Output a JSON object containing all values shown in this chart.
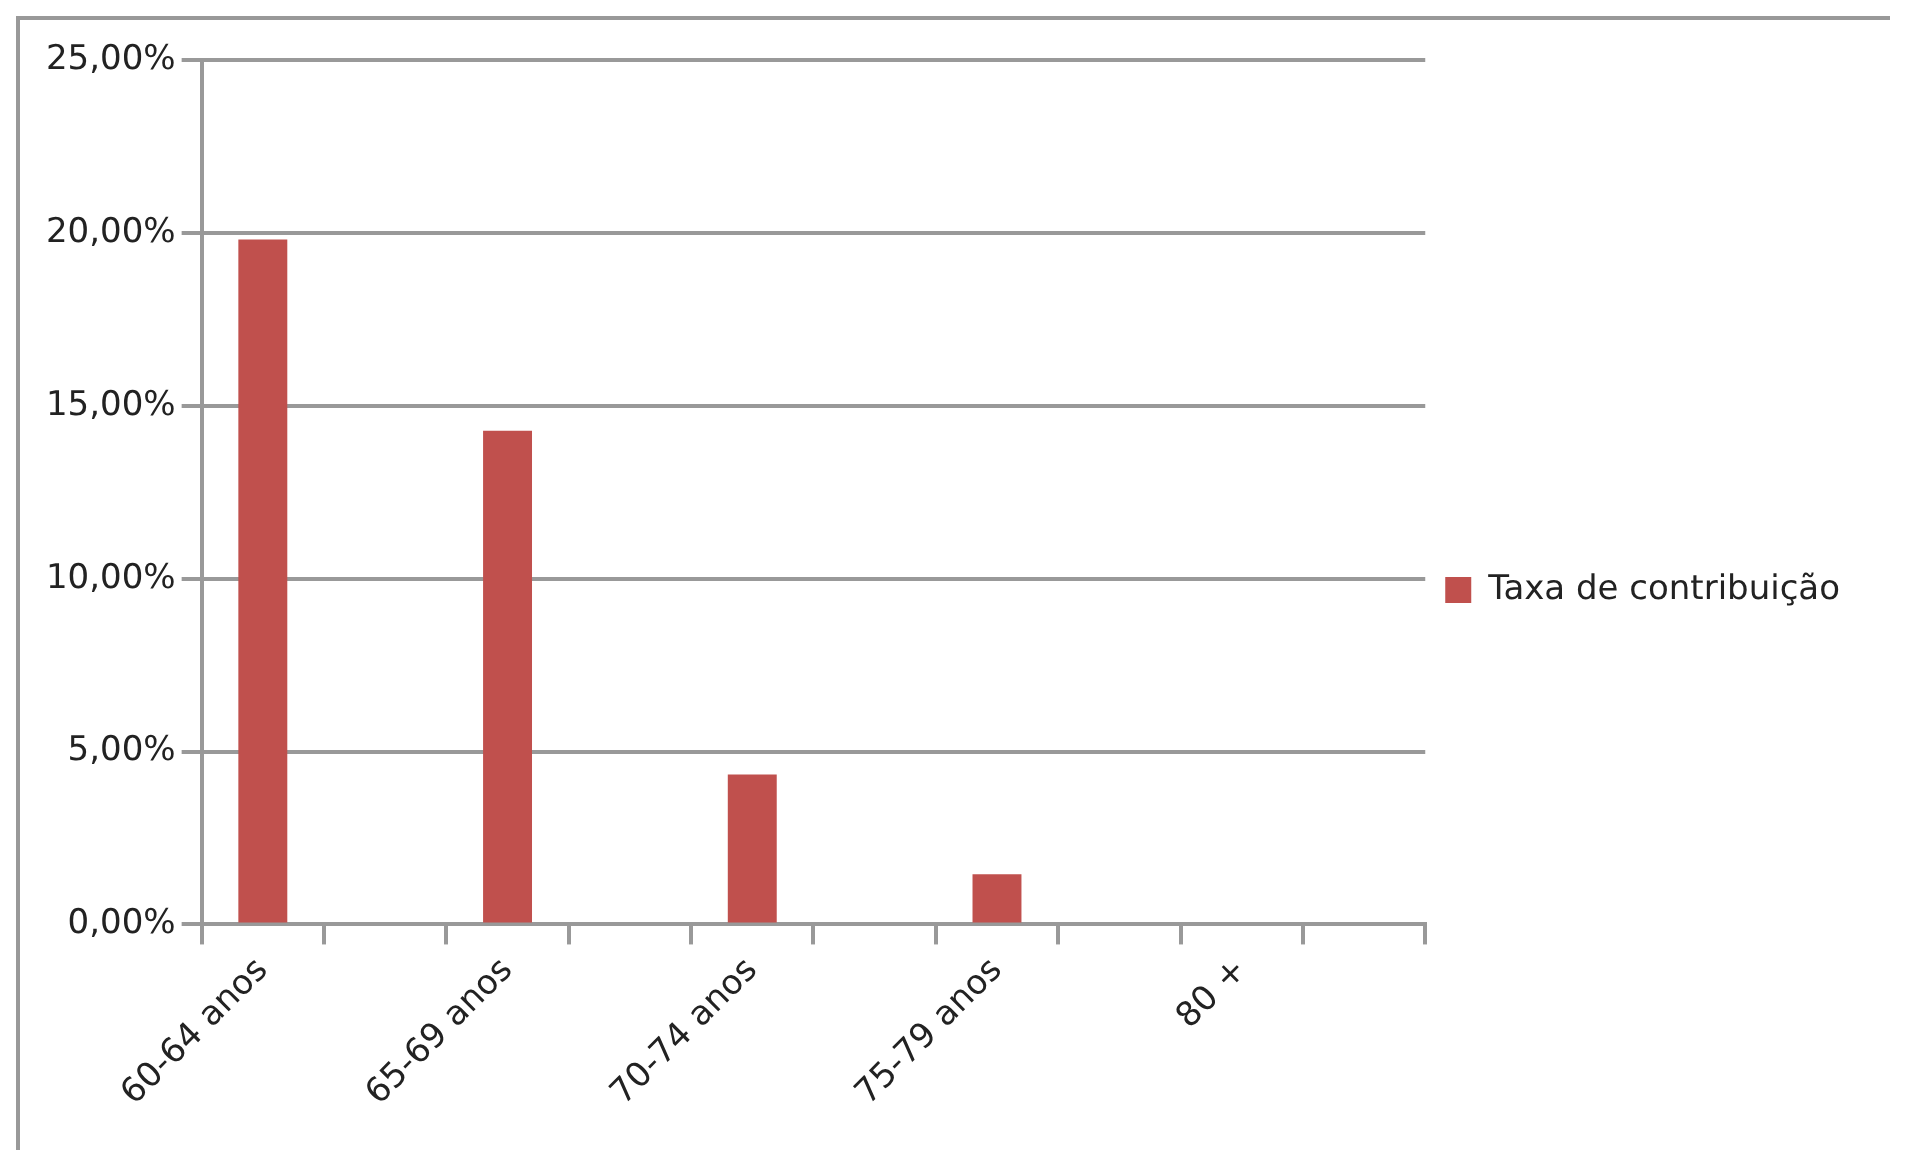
{
  "chart_data": {
    "type": "bar",
    "categories": [
      "60-64 anos",
      null,
      "65-69 anos",
      null,
      "70-74 anos",
      null,
      "75-79 anos",
      null,
      "80 +",
      null
    ],
    "series": [
      {
        "name": "Taxa de contribuição",
        "color": "#c0504d",
        "values": [
          19.81,
          null,
          14.28,
          null,
          4.34,
          null,
          1.45,
          null,
          0,
          null
        ]
      }
    ],
    "ylim": [
      0,
      25
    ],
    "yticks": [
      {
        "value": 0,
        "label": "0,00%"
      },
      {
        "value": 5,
        "label": "5,00%"
      },
      {
        "value": 10,
        "label": "10,00%"
      },
      {
        "value": 15,
        "label": "15,00%"
      },
      {
        "value": 20,
        "label": "20,00%"
      },
      {
        "value": 25,
        "label": "25,00%"
      }
    ],
    "grid": "y",
    "legend": "right"
  }
}
